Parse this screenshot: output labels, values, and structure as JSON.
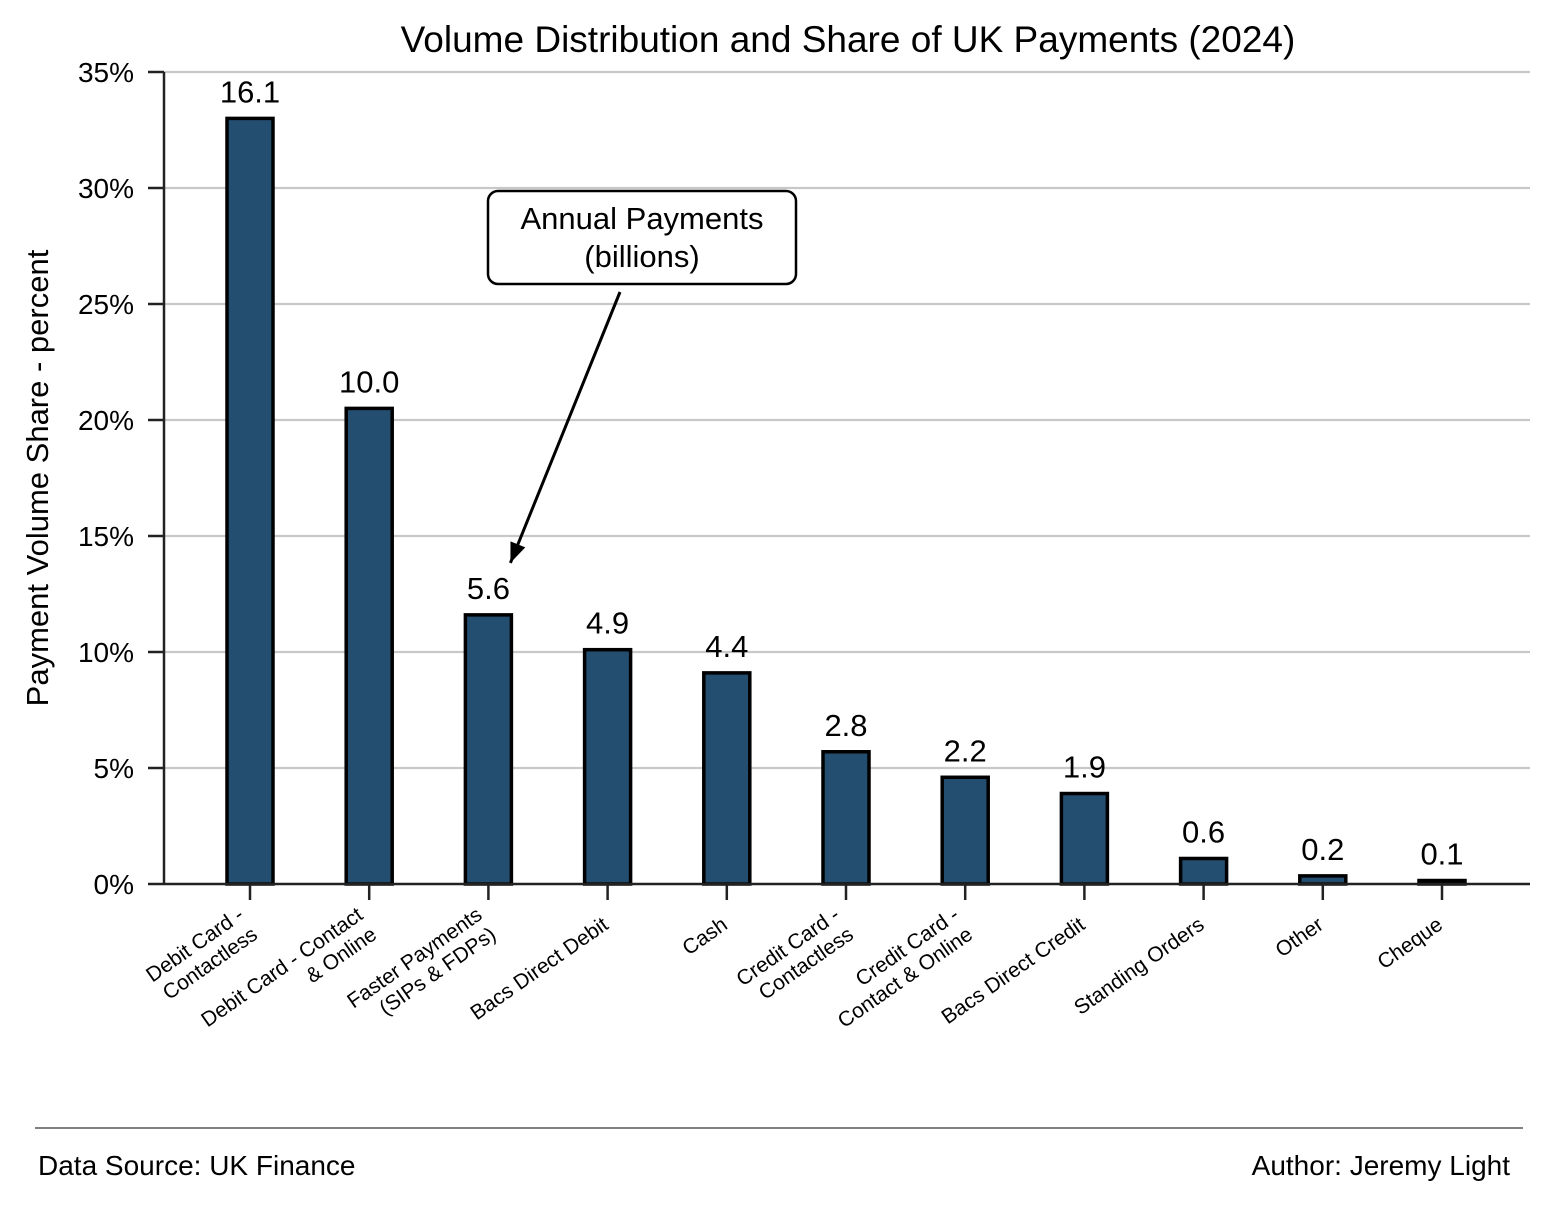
{
  "chart_data": {
    "type": "bar",
    "title": "Volume Distribution and Share of UK Payments (2024)",
    "xlabel": "",
    "ylabel": "Payment Volume Share - percent",
    "ylim": [
      0,
      35
    ],
    "y_tick_values": [
      0,
      5,
      10,
      15,
      20,
      25,
      30,
      35
    ],
    "y_tick_labels": [
      "0%",
      "5%",
      "10%",
      "15%",
      "20%",
      "25%",
      "30%",
      "35%"
    ],
    "grid": "horizontal",
    "bar_color": "#234e70",
    "bar_edge_color": "#000000",
    "categories": [
      [
        "Debit Card -",
        "Contactless"
      ],
      [
        "Debit Card - Contact",
        "& Online"
      ],
      [
        "Faster Payments",
        "(SIPs & FDPs)"
      ],
      [
        "Bacs Direct Debit"
      ],
      [
        "Cash"
      ],
      [
        "Credit Card -",
        "Contactless"
      ],
      [
        "Credit Card -",
        "Contact & Online"
      ],
      [
        "Bacs Direct Credit"
      ],
      [
        "Standing Orders"
      ],
      [
        "Other"
      ],
      [
        "Cheque"
      ]
    ],
    "values": [
      33.0,
      20.5,
      11.6,
      10.1,
      9.1,
      5.7,
      4.6,
      3.9,
      1.1,
      0.35,
      0.15
    ],
    "data_labels": [
      "16.1",
      "10.0",
      "5.6",
      "4.9",
      "4.4",
      "2.8",
      "2.2",
      "1.9",
      "0.6",
      "0.2",
      "0.1"
    ],
    "annotation": {
      "text": [
        "Annual Payments",
        "(billions)"
      ],
      "target_index": 2
    }
  },
  "footer": {
    "source": "Data Source: UK Finance",
    "author": "Author: Jeremy Light"
  }
}
